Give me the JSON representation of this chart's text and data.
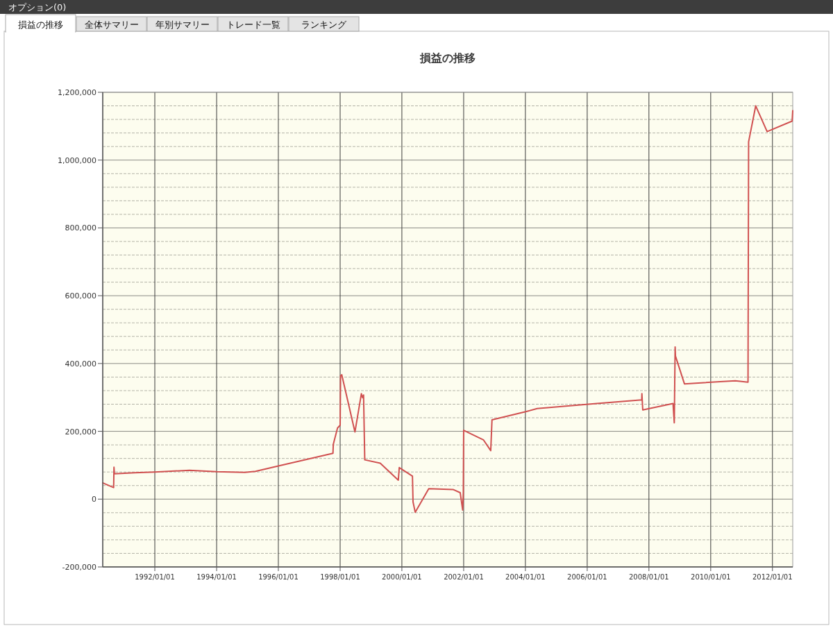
{
  "chart_data": {
    "type": "line",
    "title": "損益の推移",
    "annotations": [
      "オプション(0)",
      "損益の推移",
      "全体サマリー",
      "年別サマリー",
      "トレード一覧",
      "ランキング"
    ],
    "x": [
      "1990-04-25",
      "1990-09-01",
      "1990-09-05",
      "1990-09-10",
      "1991-05-12",
      "1992-01-01",
      "1993-02-14",
      "1994-01-01",
      "1994-12-01",
      "1995-04-05",
      "1996-01-01",
      "1997-10-08",
      "1997-10-12",
      "1997-12-01",
      "1998-01-01",
      "1998-01-06",
      "1998-01-20",
      "1998-06-25",
      "1998-09-09",
      "1998-09-24",
      "1998-10-05",
      "1998-10-19",
      "1999-04-20",
      "1999-11-20",
      "1999-12-01",
      "2000-05-05",
      "2000-05-12",
      "2000-06-07",
      "2000-11-14",
      "2001-09-02",
      "2001-11-21",
      "2001-12-20",
      "2001-12-28",
      "2002-01-01",
      "2002-08-22",
      "2002-11-17",
      "2002-12-02",
      "2004-01-05",
      "2004-05-19",
      "2006-04-23",
      "2007-10-08",
      "2007-10-10",
      "2007-10-20",
      "2008-10-12",
      "2008-10-27",
      "2008-11-06",
      "2008-11-10",
      "2009-02-24",
      "2010-10-19",
      "2011-03-18",
      "2011-03-25",
      "2011-06-17",
      "2011-10-30",
      "2012-08-21",
      "2012-08-28"
    ],
    "series": [
      {
        "color": "#d05050",
        "values": [
          48000,
          34000,
          94000,
          75000,
          78000,
          80000,
          85000,
          81000,
          79000,
          82000,
          98000,
          135000,
          162000,
          210000,
          218000,
          364000,
          367000,
          198000,
          311000,
          299000,
          307000,
          116000,
          106000,
          56000,
          93000,
          68000,
          -8000,
          -39000,
          31000,
          28000,
          19000,
          -32000,
          20000,
          203000,
          175000,
          143000,
          234000,
          258000,
          267000,
          282000,
          293000,
          311000,
          263000,
          282000,
          225000,
          449000,
          422000,
          340000,
          349000,
          345000,
          1054000,
          1160000,
          1084000,
          1115000,
          1146000
        ]
      }
    ],
    "xlim": [
      "1990-04-25",
      "2012-08-28"
    ],
    "xticks": [
      {
        "value": "1992-01-01",
        "label": "1992/01/01"
      },
      {
        "value": "1994-01-01",
        "label": "1994/01/01"
      },
      {
        "value": "1996-01-01",
        "label": "1996/01/01"
      },
      {
        "value": "1998-01-01",
        "label": "1998/01/01"
      },
      {
        "value": "2000-01-01",
        "label": "2000/01/01"
      },
      {
        "value": "2002-01-01",
        "label": "2002/01/01"
      },
      {
        "value": "2004-01-01",
        "label": "2004/01/01"
      },
      {
        "value": "2006-01-01",
        "label": "2006/01/01"
      },
      {
        "value": "2008-01-01",
        "label": "2008/01/01"
      },
      {
        "value": "2010-01-01",
        "label": "2010/01/01"
      },
      {
        "value": "2012-01-01",
        "label": "2012/01/01"
      }
    ],
    "ylim": [
      -200000,
      1200000
    ],
    "yticks": [
      {
        "value": -200000,
        "label": "-200,000"
      },
      {
        "value": -160000,
        "label": null
      },
      {
        "value": -120000,
        "label": null
      },
      {
        "value": -80000,
        "label": null
      },
      {
        "value": -40000,
        "label": null
      },
      0,
      {
        "value": 40000,
        "label": null
      },
      {
        "value": 80000,
        "label": null
      },
      {
        "value": 120000,
        "label": null
      },
      {
        "value": 160000,
        "label": null
      },
      {
        "value": 200000,
        "label": "200,000"
      },
      {
        "value": 240000,
        "label": null
      },
      {
        "value": 280000,
        "label": null
      },
      {
        "value": 320000,
        "label": null
      },
      {
        "value": 360000,
        "label": null
      },
      {
        "value": 400000,
        "label": "400,000"
      },
      {
        "value": 440000,
        "label": null
      },
      {
        "value": 480000,
        "label": null
      },
      {
        "value": 520000,
        "label": null
      },
      {
        "value": 560000,
        "label": null
      },
      {
        "value": 600000,
        "label": "600,000"
      },
      {
        "value": 640000,
        "label": null
      },
      {
        "value": 680000,
        "label": null
      },
      {
        "value": 720000,
        "label": null
      },
      {
        "value": 760000,
        "label": null
      },
      {
        "value": 800000,
        "label": "800,000"
      },
      {
        "value": 840000,
        "label": null
      },
      {
        "value": 880000,
        "label": null
      },
      {
        "value": 920000,
        "label": null
      },
      {
        "value": 960000,
        "label": null
      },
      {
        "value": 1000000,
        "label": "1,000,000"
      },
      {
        "value": 1040000,
        "label": null
      },
      {
        "value": 1080000,
        "label": null
      },
      {
        "value": 1120000,
        "label": null
      },
      {
        "value": 1160000,
        "label": null
      },
      {
        "value": 1200000,
        "label": "1,200,000"
      }
    ],
    "grid": true
  }
}
